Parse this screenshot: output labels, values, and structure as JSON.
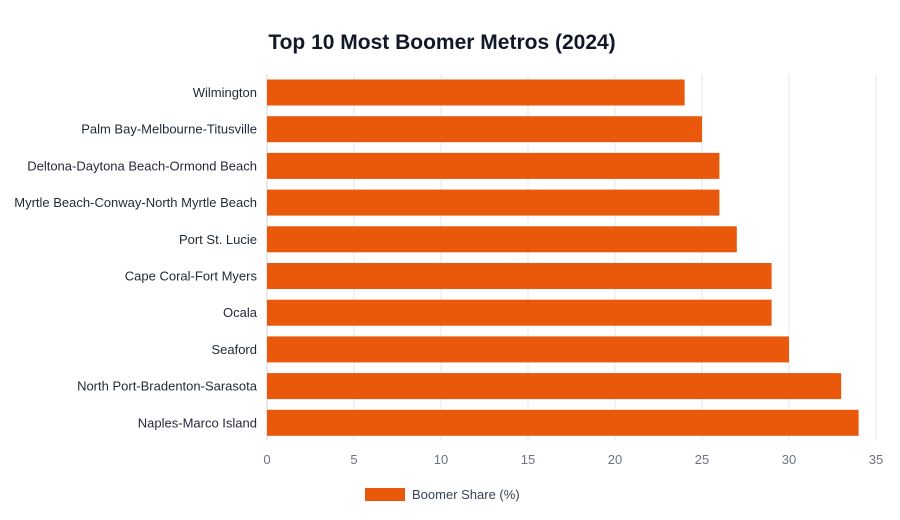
{
  "chart_data": {
    "type": "bar",
    "orientation": "horizontal",
    "title": "Top 10 Most Boomer Metros (2024)",
    "categories": [
      "Wilmington",
      "Palm Bay-Melbourne-Titusville",
      "Deltona-Daytona Beach-Ormond Beach",
      "Myrtle Beach-Conway-North Myrtle Beach",
      "Port St. Lucie",
      "Cape Coral-Fort Myers",
      "Ocala",
      "Seaford",
      "North Port-Bradenton-Sarasota",
      "Naples-Marco Island"
    ],
    "series": [
      {
        "name": "Boomer Share (%)",
        "values": [
          24,
          25,
          26,
          26,
          27,
          29,
          29,
          30,
          33,
          34
        ]
      }
    ],
    "xlim": [
      0,
      35
    ],
    "xticks": [
      0,
      5,
      10,
      15,
      20,
      25,
      30,
      35
    ],
    "grid": true,
    "legend": "bottom"
  },
  "colors": {
    "bar": "#ea580c"
  }
}
